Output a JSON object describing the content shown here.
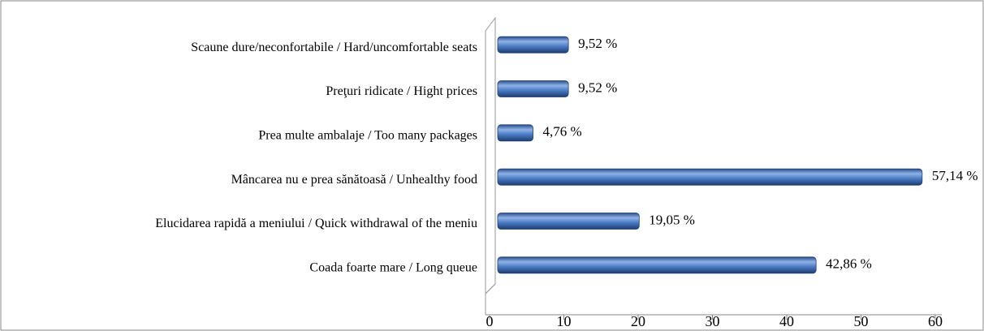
{
  "chart_data": {
    "type": "bar",
    "orientation": "horizontal",
    "categories": [
      "Scaune dure/neconfortabile / Hard/uncomfortable seats",
      "Preţuri ridicate / Hight prices",
      "Prea multe ambalaje / Too many packages",
      "Mâncarea nu e prea sănătoasă / Unhealthy food",
      "Elucidarea rapidă a meniului / Quick withdrawal of the meniu",
      "Coada foarte mare / Long queue"
    ],
    "values": [
      9.52,
      9.52,
      4.76,
      57.14,
      19.05,
      42.86
    ],
    "value_labels": [
      "9,52 %",
      "9,52 %",
      "4,76 %",
      "57,14 %",
      "19,05 %",
      "42,86 %"
    ],
    "color": "#4a7bc4",
    "xlim": [
      0,
      60
    ],
    "xticks": [
      0,
      10,
      20,
      30,
      40,
      50,
      60
    ],
    "grid": false
  }
}
